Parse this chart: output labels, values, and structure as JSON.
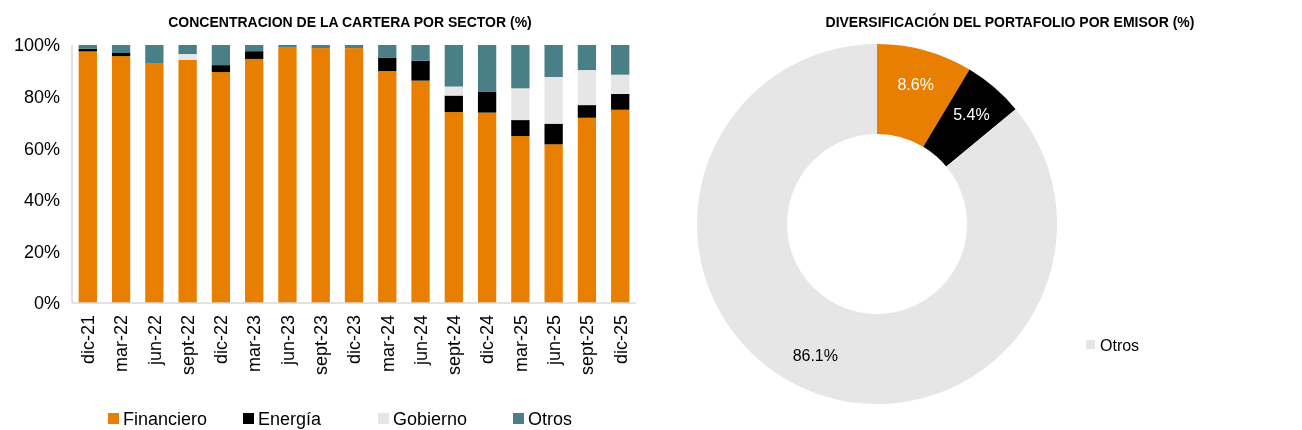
{
  "chart_data": [
    {
      "type": "bar",
      "title": "CONCENTRACION DE LA CARTERA POR SECTOR (%)",
      "stacked": true,
      "categories": [
        "dic-21",
        "mar-22",
        "jun-22",
        "sept-22",
        "dic-22",
        "mar-23",
        "jun-23",
        "sept-23",
        "dic-23",
        "mar-24",
        "jun-24",
        "sept-24",
        "dic-24",
        "mar-25",
        "jun-25",
        "sept-25",
        "dic-25"
      ],
      "series": [
        {
          "name": "Financiero",
          "color": "#e97f00",
          "values": [
            97.5,
            95.7,
            93,
            94.2,
            89.5,
            94.6,
            99.2,
            98.8,
            98.8,
            89.9,
            86.2,
            74,
            73.8,
            64.7,
            61.5,
            71.8,
            74.9
          ]
        },
        {
          "name": "Energía",
          "color": "#000000",
          "values": [
            1,
            1.2,
            0,
            0,
            2.7,
            3,
            0,
            0,
            0,
            5.1,
            7.7,
            6.4,
            8,
            6.2,
            8,
            4.9,
            6.1
          ]
        },
        {
          "name": "Gobierno",
          "color": "#e6e6e6",
          "values": [
            0,
            0,
            0,
            2.3,
            0,
            0,
            0,
            0,
            0,
            0,
            0,
            3.5,
            0,
            12.3,
            18.1,
            13.6,
            7.5
          ]
        },
        {
          "name": "Otros",
          "color": "#4a7f88",
          "values": [
            1.5,
            3.1,
            7,
            3.5,
            7.8,
            2.4,
            0.8,
            1.2,
            1.2,
            5,
            6.1,
            16.1,
            18.2,
            16.8,
            12.4,
            9.7,
            11.5
          ]
        }
      ],
      "ylim": [
        0,
        100
      ],
      "yticks": [
        {
          "value": 0,
          "label": "0%"
        },
        {
          "value": 20,
          "label": "20%"
        },
        {
          "value": 40,
          "label": "40%"
        },
        {
          "value": 60,
          "label": "60%"
        },
        {
          "value": 80,
          "label": "80%"
        },
        {
          "value": 100,
          "label": "100%"
        }
      ],
      "legend": "bottom",
      "grid": false
    },
    {
      "type": "donut",
      "title": "DIVERSIFICACIÓN DEL PORTAFOLIO POR EMISOR (%)",
      "categories": [
        null,
        null,
        "Otros"
      ],
      "values": [
        8.6,
        5.4,
        86.1
      ],
      "colors": [
        "#e97f00",
        "#000000",
        "#e6e6e6"
      ],
      "value_labels": [
        "8.6%",
        "5.4%",
        "86.1%"
      ],
      "legend": "right"
    }
  ]
}
